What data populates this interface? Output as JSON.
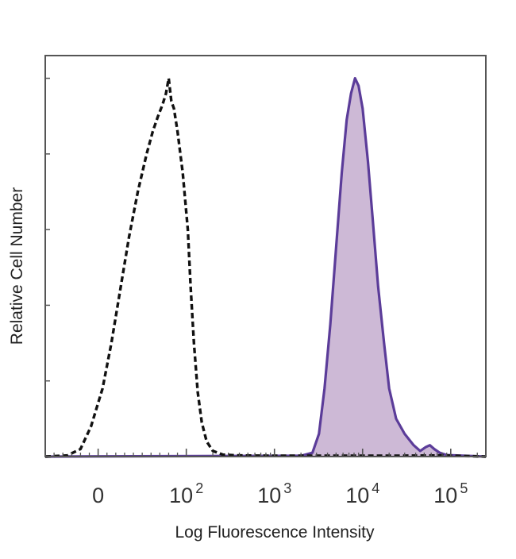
{
  "chart_data": {
    "type": "area",
    "title": "",
    "xlabel": "Log Fluorescence Intensity",
    "ylabel": "Relative Cell Number",
    "x_scale": "biexponential (log above 10^2)",
    "xlim": [
      -60,
      250000
    ],
    "ylim": [
      0,
      1.06
    ],
    "grid": false,
    "legend": "none",
    "x_ticks": [
      {
        "value": 0,
        "base": "0",
        "exp": ""
      },
      {
        "value": 100,
        "base": "10",
        "exp": "2"
      },
      {
        "value": 1000,
        "base": "10",
        "exp": "3"
      },
      {
        "value": 10000,
        "base": "10",
        "exp": "4"
      },
      {
        "value": 100000,
        "base": "10",
        "exp": "5"
      }
    ],
    "colors": {
      "axis": "#555555",
      "control_line": "#111111",
      "stained_line": "#5b3c99",
      "stained_fill": "#cdb9d6"
    },
    "series": [
      {
        "style": "dashed",
        "color": "#111111",
        "points": [
          [
            -60,
            0
          ],
          [
            -35,
            0.003
          ],
          [
            -20,
            0.02
          ],
          [
            -8,
            0.08
          ],
          [
            5,
            0.18
          ],
          [
            15,
            0.3
          ],
          [
            25,
            0.44
          ],
          [
            35,
            0.58
          ],
          [
            45,
            0.7
          ],
          [
            55,
            0.8
          ],
          [
            62,
            0.86
          ],
          [
            68,
            0.9
          ],
          [
            73,
            0.93
          ],
          [
            77,
            0.96
          ],
          [
            80,
            1.0
          ],
          [
            83,
            0.94
          ],
          [
            86,
            0.92
          ],
          [
            90,
            0.86
          ],
          [
            96,
            0.75
          ],
          [
            104,
            0.6
          ],
          [
            112,
            0.45
          ],
          [
            122,
            0.3
          ],
          [
            135,
            0.17
          ],
          [
            150,
            0.09
          ],
          [
            170,
            0.04
          ],
          [
            200,
            0.015
          ],
          [
            260,
            0.005
          ],
          [
            400,
            0.003
          ],
          [
            1000,
            0.002
          ],
          [
            5000,
            0.002
          ],
          [
            20000,
            0.002
          ],
          [
            80000,
            0.003
          ],
          [
            250000,
            0
          ]
        ]
      },
      {
        "style": "solid-filled",
        "color": "#5b3c99",
        "fill": "#cdb9d6",
        "points": [
          [
            -60,
            0
          ],
          [
            2000,
            0.002
          ],
          [
            2700,
            0.01
          ],
          [
            3200,
            0.06
          ],
          [
            3700,
            0.18
          ],
          [
            4300,
            0.35
          ],
          [
            5000,
            0.55
          ],
          [
            5800,
            0.75
          ],
          [
            6600,
            0.89
          ],
          [
            7400,
            0.96
          ],
          [
            8200,
            1.0
          ],
          [
            9000,
            0.98
          ],
          [
            10000,
            0.92
          ],
          [
            11500,
            0.78
          ],
          [
            13000,
            0.63
          ],
          [
            15000,
            0.45
          ],
          [
            17500,
            0.3
          ],
          [
            20000,
            0.18
          ],
          [
            24000,
            0.1
          ],
          [
            30000,
            0.06
          ],
          [
            38000,
            0.03
          ],
          [
            45000,
            0.015
          ],
          [
            52000,
            0.025
          ],
          [
            58000,
            0.03
          ],
          [
            65000,
            0.02
          ],
          [
            75000,
            0.01
          ],
          [
            90000,
            0.004
          ],
          [
            250000,
            0
          ]
        ]
      }
    ]
  }
}
